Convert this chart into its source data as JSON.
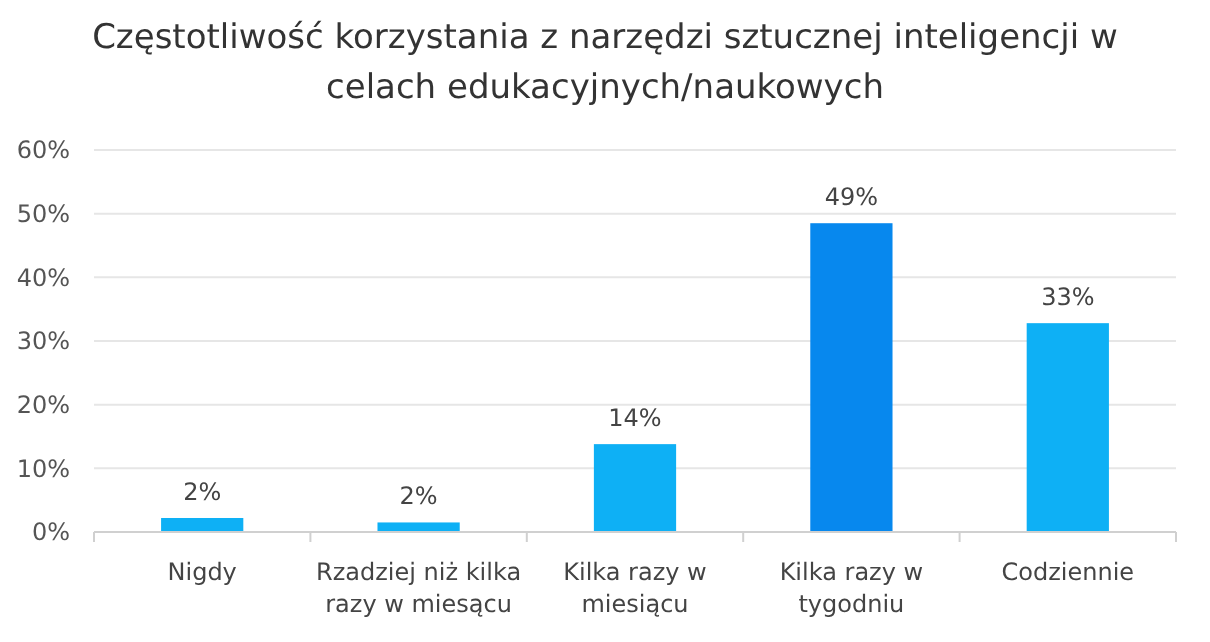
{
  "chart_data": {
    "type": "bar",
    "title": "Częstotliwość korzystania z narzędzi sztucznej inteligencji w celach edukacyjnych/naukowych",
    "categories": [
      "Nigdy",
      "Rzadziej niż kilka razy w miesącu",
      "Kilka razy w miesiącu",
      "Kilka razy w tygodniu",
      "Codziennie"
    ],
    "values": [
      2.2,
      1.5,
      13.8,
      48.5,
      32.8
    ],
    "value_labels": [
      "2%",
      "2%",
      "14%",
      "49%",
      "33%"
    ],
    "colors": [
      "#0eb0f5",
      "#0eb0f5",
      "#0eb0f5",
      "#0788ee",
      "#0eb0f5"
    ],
    "ylim": [
      0,
      60
    ],
    "yticks": [
      {
        "value": 0,
        "label": "0%"
      },
      {
        "value": 10,
        "label": "10%"
      },
      {
        "value": 20,
        "label": "20%"
      },
      {
        "value": 30,
        "label": "30%"
      },
      {
        "value": 40,
        "label": "40%"
      },
      {
        "value": 50,
        "label": "50%"
      },
      {
        "value": 60,
        "label": "60%"
      }
    ],
    "grid": "y"
  }
}
